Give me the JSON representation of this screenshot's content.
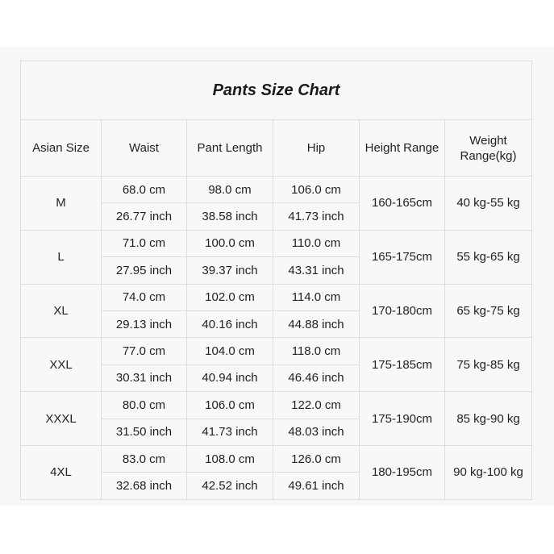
{
  "table": {
    "title": "Pants Size Chart",
    "headers": [
      "Asian Size",
      "Waist",
      "Pant Length",
      "Hip",
      "Height Range",
      "Weight Range(kg)"
    ],
    "rows": [
      {
        "size": "M",
        "waist_cm": "68.0 cm",
        "waist_in": "26.77 inch",
        "length_cm": "98.0 cm",
        "length_in": "38.58 inch",
        "hip_cm": "106.0 cm",
        "hip_in": "41.73 inch",
        "height": "160-165cm",
        "weight": "40 kg-55 kg"
      },
      {
        "size": "L",
        "waist_cm": "71.0 cm",
        "waist_in": "27.95 inch",
        "length_cm": "100.0 cm",
        "length_in": "39.37 inch",
        "hip_cm": "110.0 cm",
        "hip_in": "43.31 inch",
        "height": "165-175cm",
        "weight": "55 kg-65 kg"
      },
      {
        "size": "XL",
        "waist_cm": "74.0 cm",
        "waist_in": "29.13 inch",
        "length_cm": "102.0 cm",
        "length_in": "40.16 inch",
        "hip_cm": "114.0 cm",
        "hip_in": "44.88 inch",
        "height": "170-180cm",
        "weight": "65 kg-75 kg"
      },
      {
        "size": "XXL",
        "waist_cm": "77.0 cm",
        "waist_in": "30.31 inch",
        "length_cm": "104.0 cm",
        "length_in": "40.94 inch",
        "hip_cm": "118.0 cm",
        "hip_in": "46.46 inch",
        "height": "175-185cm",
        "weight": "75 kg-85 kg"
      },
      {
        "size": "XXXL",
        "waist_cm": "80.0 cm",
        "waist_in": "31.50 inch",
        "length_cm": "106.0 cm",
        "length_in": "41.73 inch",
        "hip_cm": "122.0 cm",
        "hip_in": "48.03 inch",
        "height": "175-190cm",
        "weight": "85 kg-90 kg"
      },
      {
        "size": "4XL",
        "waist_cm": "83.0 cm",
        "waist_in": "32.68 inch",
        "length_cm": "108.0 cm",
        "length_in": "42.52 inch",
        "hip_cm": "126.0 cm",
        "hip_in": "49.61 inch",
        "height": "180-195cm",
        "weight": "90 kg-100 kg"
      }
    ]
  }
}
